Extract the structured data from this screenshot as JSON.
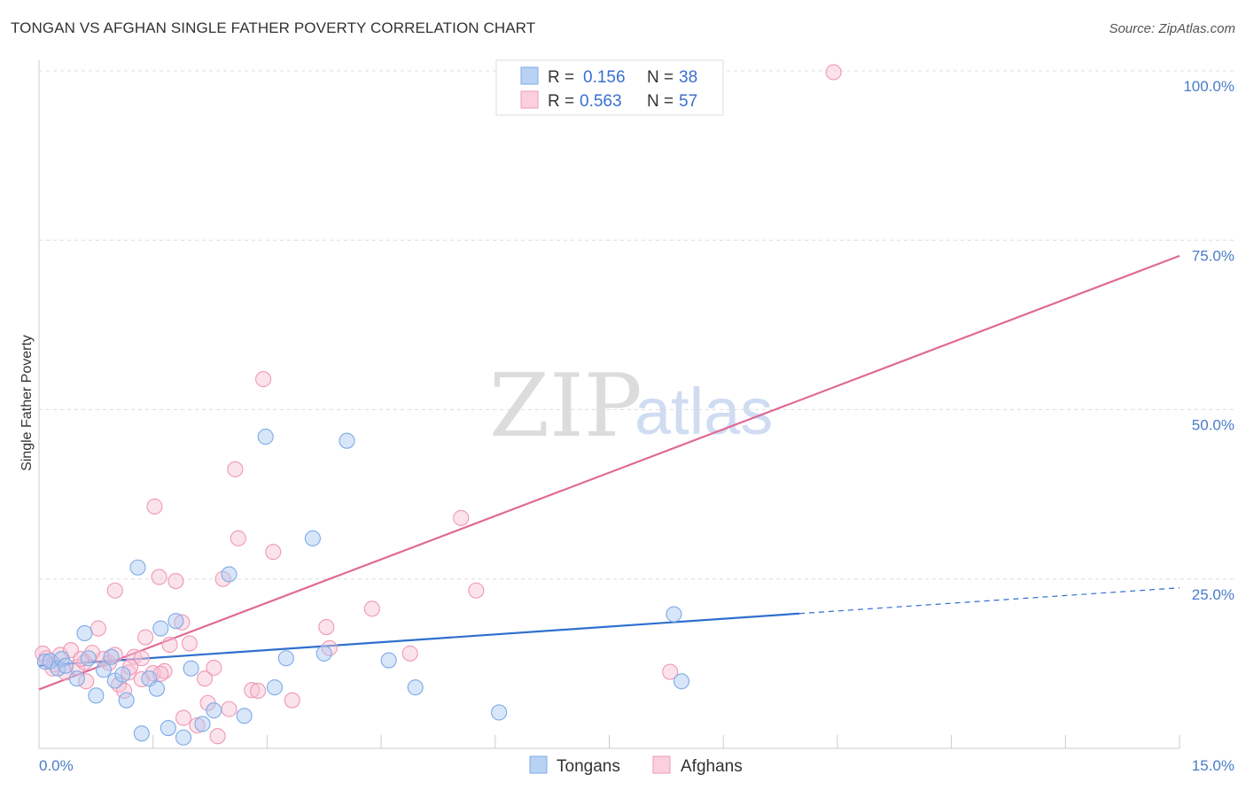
{
  "chart_data": {
    "type": "scatter",
    "title": "TONGAN VS AFGHAN SINGLE FATHER POVERTY CORRELATION CHART",
    "source": "Source: ZipAtlas.com",
    "xlabel": "",
    "ylabel": "Single Father Poverty",
    "xlim": [
      0,
      15
    ],
    "ylim": [
      0,
      100
    ],
    "x_tick_labels": [
      "0.0%",
      "15.0%"
    ],
    "y_ticks": [
      25,
      50,
      75,
      100
    ],
    "y_tick_labels": [
      "25.0%",
      "50.0%",
      "75.0%",
      "100.0%"
    ],
    "watermark": {
      "zip": "ZIP",
      "atlas": "atlas"
    },
    "legend": {
      "rows": [
        {
          "r_label": "R =",
          "r_value": "0.156",
          "n_label": "N =",
          "n_value": "38"
        },
        {
          "r_label": "R =",
          "r_value": "0.563",
          "n_label": "N =",
          "n_value": "57"
        }
      ]
    },
    "series": [
      {
        "name": "Tongans",
        "color": "#a9c8f2",
        "stroke": "#7eaae6",
        "line_color": "#2f6fce",
        "trend": {
          "x0": 0.0,
          "y0": 12.2,
          "x1": 10.0,
          "y1": 19.9,
          "dash_to_x": 15.0,
          "dash_to_y": 23.7
        },
        "points": [
          [
            0.08,
            12.8
          ],
          [
            0.15,
            12.9
          ],
          [
            0.25,
            11.8
          ],
          [
            0.3,
            13.2
          ],
          [
            0.35,
            12.2
          ],
          [
            0.5,
            10.3
          ],
          [
            0.6,
            17.0
          ],
          [
            0.65,
            13.3
          ],
          [
            0.75,
            7.8
          ],
          [
            0.85,
            11.6
          ],
          [
            0.95,
            13.5
          ],
          [
            1.0,
            10.0
          ],
          [
            1.1,
            10.9
          ],
          [
            1.15,
            7.1
          ],
          [
            1.3,
            26.7
          ],
          [
            1.35,
            2.2
          ],
          [
            1.45,
            10.3
          ],
          [
            1.55,
            8.8
          ],
          [
            1.6,
            17.7
          ],
          [
            1.7,
            3.0
          ],
          [
            1.8,
            18.8
          ],
          [
            1.9,
            1.6
          ],
          [
            2.0,
            11.8
          ],
          [
            2.15,
            3.6
          ],
          [
            2.3,
            5.6
          ],
          [
            2.5,
            25.7
          ],
          [
            2.7,
            4.8
          ],
          [
            2.98,
            46.0
          ],
          [
            3.1,
            9.0
          ],
          [
            3.25,
            13.3
          ],
          [
            3.6,
            31.0
          ],
          [
            3.75,
            14.0
          ],
          [
            4.05,
            45.4
          ],
          [
            4.6,
            13.0
          ],
          [
            4.95,
            9.0
          ],
          [
            6.05,
            5.3
          ],
          [
            8.35,
            19.8
          ],
          [
            8.45,
            9.9
          ]
        ]
      },
      {
        "name": "Afghans",
        "color": "#f7c0d2",
        "stroke": "#ef98b6",
        "line_color": "#e06a96",
        "trend": {
          "x0": 0.0,
          "y0": 8.7,
          "x1": 15.0,
          "y1": 72.7
        },
        "points": [
          [
            0.05,
            14.0
          ],
          [
            0.1,
            13.3
          ],
          [
            0.2,
            12.4
          ],
          [
            0.28,
            13.8
          ],
          [
            0.35,
            11.2
          ],
          [
            0.42,
            14.5
          ],
          [
            0.5,
            12.0
          ],
          [
            0.6,
            12.7
          ],
          [
            0.62,
            9.9
          ],
          [
            0.7,
            14.1
          ],
          [
            0.78,
            17.7
          ],
          [
            0.85,
            13.2
          ],
          [
            0.92,
            12.6
          ],
          [
            1.0,
            13.8
          ],
          [
            1.0,
            23.3
          ],
          [
            1.05,
            9.4
          ],
          [
            1.12,
            8.5
          ],
          [
            1.18,
            11.2
          ],
          [
            1.25,
            13.5
          ],
          [
            1.35,
            10.2
          ],
          [
            1.35,
            13.3
          ],
          [
            1.4,
            16.4
          ],
          [
            1.5,
            11.1
          ],
          [
            1.52,
            35.7
          ],
          [
            1.58,
            25.3
          ],
          [
            1.65,
            11.4
          ],
          [
            1.72,
            15.3
          ],
          [
            1.8,
            24.7
          ],
          [
            1.88,
            18.6
          ],
          [
            1.9,
            4.5
          ],
          [
            1.98,
            15.5
          ],
          [
            2.08,
            3.4
          ],
          [
            2.18,
            10.3
          ],
          [
            2.22,
            6.7
          ],
          [
            2.3,
            11.9
          ],
          [
            2.35,
            1.8
          ],
          [
            2.42,
            25.0
          ],
          [
            2.5,
            5.8
          ],
          [
            2.58,
            41.2
          ],
          [
            2.62,
            31.0
          ],
          [
            2.8,
            8.6
          ],
          [
            2.88,
            8.5
          ],
          [
            2.95,
            54.5
          ],
          [
            3.08,
            29.0
          ],
          [
            3.33,
            7.1
          ],
          [
            3.78,
            17.9
          ],
          [
            3.82,
            14.8
          ],
          [
            4.38,
            20.6
          ],
          [
            4.88,
            14.0
          ],
          [
            5.55,
            34.0
          ],
          [
            5.75,
            23.3
          ],
          [
            8.3,
            11.3
          ],
          [
            10.45,
            99.8
          ],
          [
            0.18,
            11.8
          ],
          [
            0.55,
            13.2
          ],
          [
            1.6,
            11.0
          ],
          [
            1.2,
            12.0
          ]
        ]
      }
    ]
  }
}
